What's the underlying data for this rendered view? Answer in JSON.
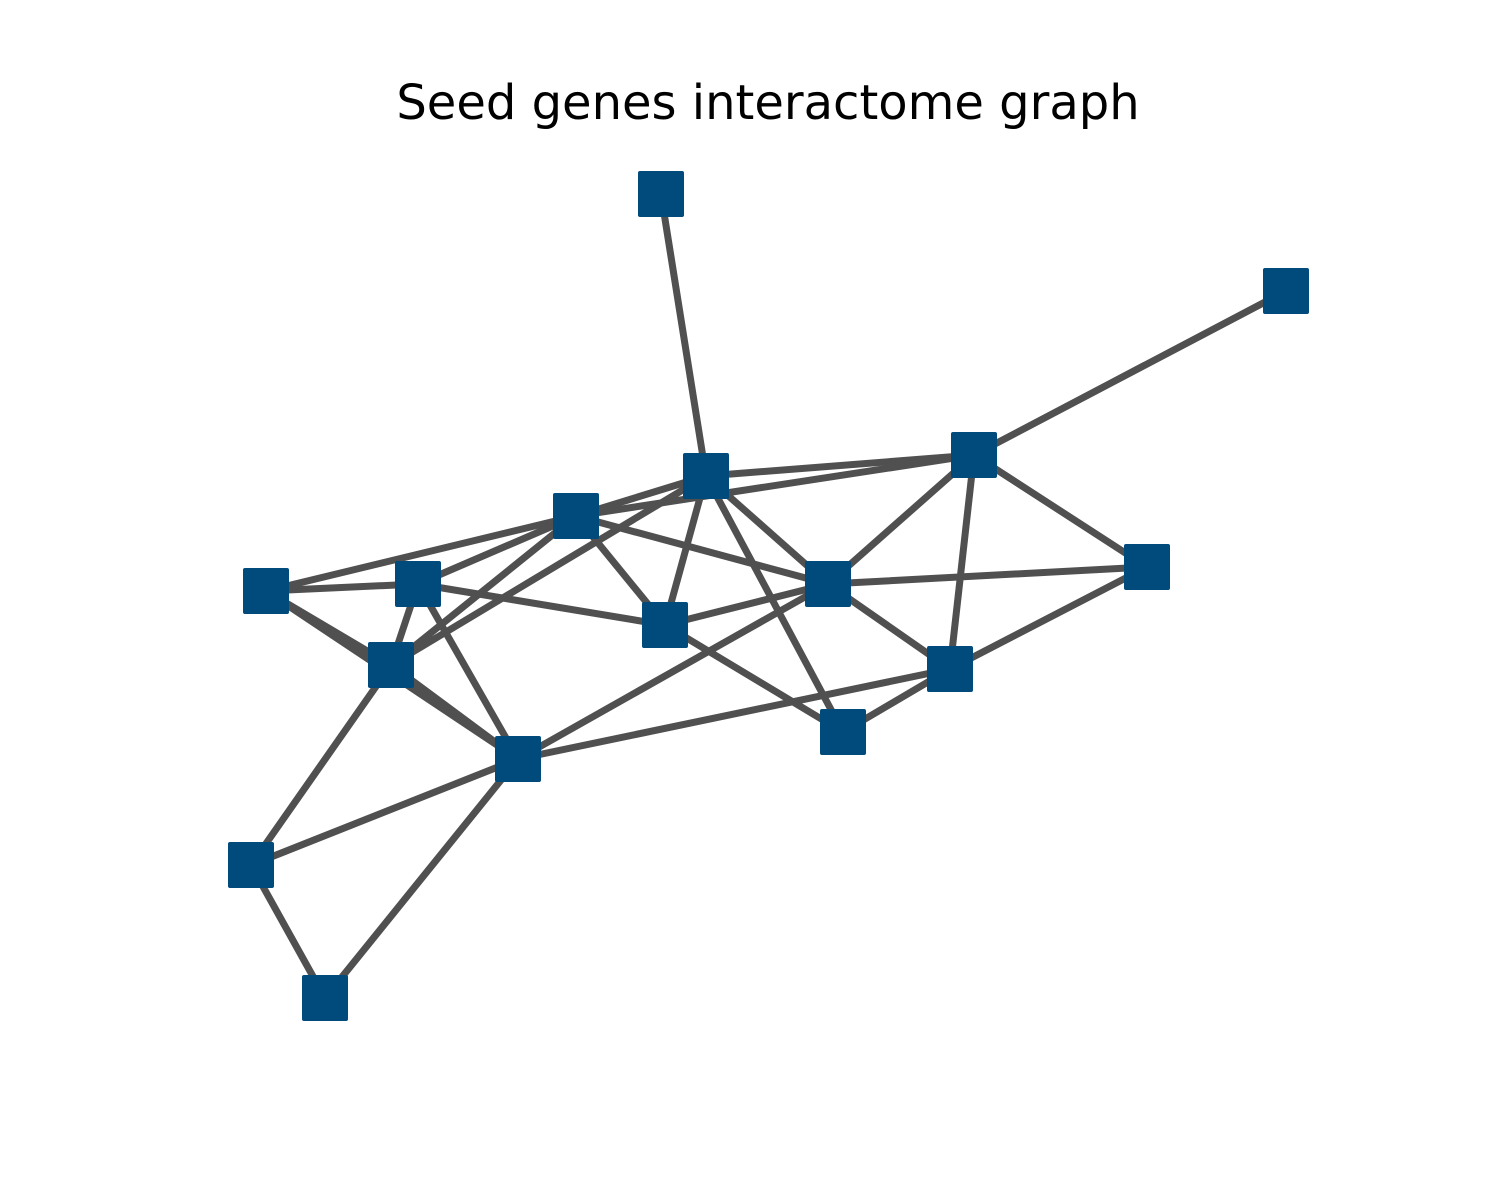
{
  "title": "Seed genes interactome graph",
  "colors": {
    "node": "#004a7c",
    "edge": "#505050",
    "background": "#ffffff"
  },
  "graph": {
    "node_shape": "square",
    "node_count": 17,
    "edge_count": 37
  }
}
